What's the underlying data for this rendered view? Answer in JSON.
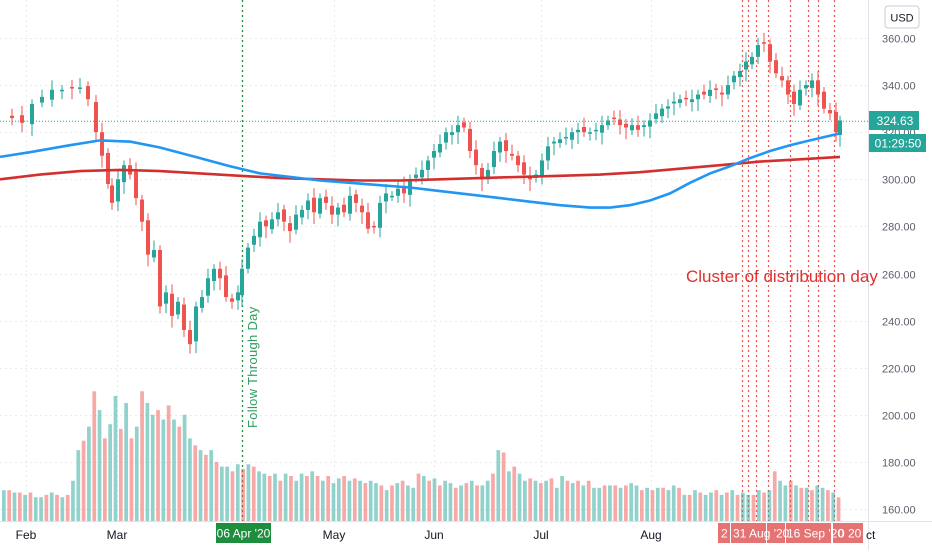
{
  "chart_data": {
    "type": "candlestick",
    "currency": "USD",
    "last_price": "324.63",
    "countdown": "01:29:50",
    "y_ticks": [
      160,
      180,
      200,
      220,
      240,
      260,
      280,
      300,
      320,
      340,
      360
    ],
    "ylim": [
      156,
      366
    ],
    "x_months": [
      "Feb",
      "Mar",
      "May",
      "Jun",
      "Jul",
      "Aug"
    ],
    "x_clipped": "ct",
    "marker_dates": {
      "follow_through": "06 Apr '20",
      "distribution": [
        "2",
        "31 Aug '20",
        "16 Sep '20",
        "0",
        "20"
      ]
    },
    "annotations": {
      "follow_through": "Follow Through Day",
      "distribution": "Cluster of distribution day"
    },
    "ma_blue": [
      [
        0,
        309.5
      ],
      [
        30,
        311.5
      ],
      [
        70,
        314.5
      ],
      [
        100,
        316.5
      ],
      [
        130,
        316
      ],
      [
        160,
        313.5
      ],
      [
        200,
        309
      ],
      [
        230,
        305.5
      ],
      [
        260,
        302.5
      ],
      [
        290,
        301
      ],
      [
        320,
        299.5
      ],
      [
        350,
        298.5
      ],
      [
        380,
        297.5
      ],
      [
        410,
        296.5
      ],
      [
        440,
        295
      ],
      [
        470,
        293.5
      ],
      [
        500,
        292
      ],
      [
        530,
        290.5
      ],
      [
        560,
        289
      ],
      [
        590,
        288
      ],
      [
        610,
        288
      ],
      [
        630,
        289
      ],
      [
        650,
        291
      ],
      [
        670,
        294
      ],
      [
        690,
        298.5
      ],
      [
        710,
        302.5
      ],
      [
        730,
        305.5
      ],
      [
        750,
        309
      ],
      [
        770,
        312
      ],
      [
        790,
        314.5
      ],
      [
        810,
        316.5
      ],
      [
        825,
        318
      ],
      [
        840,
        319.5
      ]
    ],
    "ma_red": [
      [
        0,
        300
      ],
      [
        40,
        302
      ],
      [
        80,
        303.5
      ],
      [
        120,
        304
      ],
      [
        160,
        303.5
      ],
      [
        200,
        302.5
      ],
      [
        240,
        301.5
      ],
      [
        280,
        300.5
      ],
      [
        320,
        300
      ],
      [
        360,
        299.5
      ],
      [
        400,
        299.5
      ],
      [
        440,
        300
      ],
      [
        480,
        300.5
      ],
      [
        520,
        301
      ],
      [
        560,
        301.5
      ],
      [
        600,
        302
      ],
      [
        640,
        303
      ],
      [
        680,
        304.5
      ],
      [
        720,
        306
      ],
      [
        760,
        307.5
      ],
      [
        800,
        308.5
      ],
      [
        840,
        309.5
      ]
    ],
    "volume_tops": [
      168,
      168,
      167,
      167,
      166,
      167,
      165,
      165,
      166,
      167,
      166,
      165,
      166,
      172,
      185,
      189,
      195,
      210,
      202,
      190,
      196,
      208,
      194,
      205,
      190,
      195,
      210,
      205,
      200,
      202,
      198,
      204,
      198,
      195,
      200,
      190,
      187,
      185,
      183,
      185,
      180,
      178,
      178,
      176,
      179,
      177,
      179,
      178,
      176,
      175,
      174,
      175,
      172,
      175,
      174,
      172,
      175,
      174,
      176,
      174,
      172,
      174,
      171,
      173,
      174,
      172,
      173,
      172,
      171,
      172,
      171,
      170,
      168,
      170,
      171,
      172,
      170,
      169,
      175,
      174,
      172,
      173,
      170,
      172,
      171,
      169,
      170,
      171,
      172,
      170,
      170,
      172,
      175,
      185,
      184,
      176,
      178,
      175,
      172,
      173,
      172,
      171,
      172,
      173,
      169,
      174,
      172,
      171,
      172,
      170,
      172,
      169,
      169,
      170,
      170,
      170,
      169,
      170,
      171,
      170,
      168,
      169,
      168,
      169,
      169,
      168,
      170,
      169,
      166,
      166,
      168,
      167,
      166,
      167,
      168,
      166,
      167,
      168,
      166,
      167,
      166,
      166,
      168,
      167,
      168,
      176,
      172,
      170,
      172,
      170,
      169,
      169,
      168,
      170,
      169,
      168,
      167,
      165
    ]
  }
}
